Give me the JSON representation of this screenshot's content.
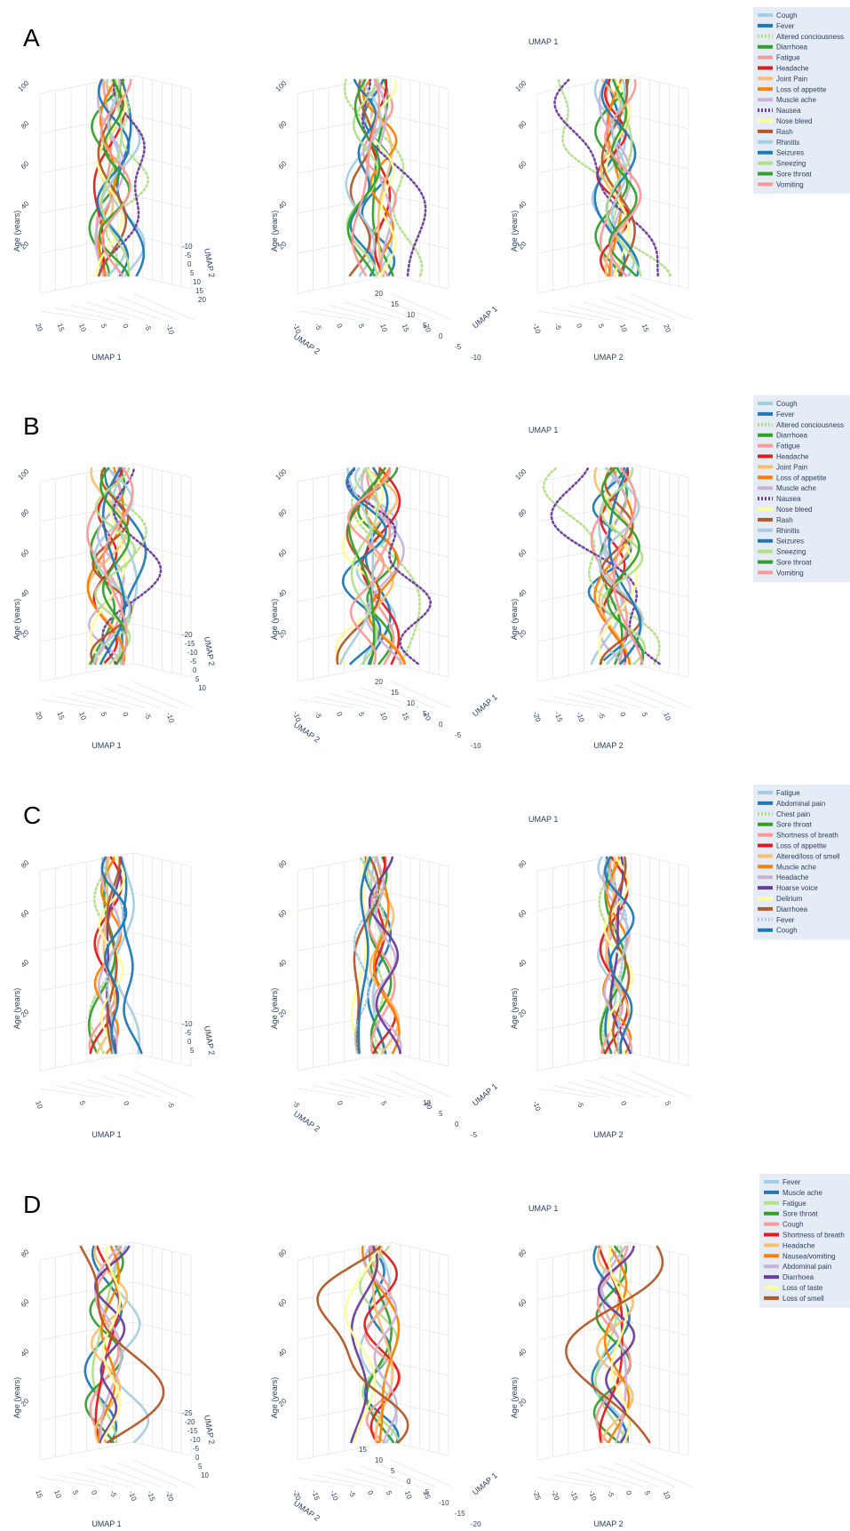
{
  "panels": [
    {
      "letter": "A",
      "legend": [
        "Cough",
        "Fever",
        "Altered conciousness",
        "Diarrhoea",
        "Fatigue",
        "Headache",
        "Joint Pain",
        "Loss of appetite",
        "Muscle ache",
        "Nausea",
        "Nose bleed",
        "Rash",
        "Rhinitis",
        "Seizures",
        "Sneezing",
        "Sore throat",
        "Vomiting"
      ],
      "dotted": [
        "Altered conciousness",
        "Nausea"
      ],
      "age_ticks": [
        "20",
        "40",
        "60",
        "80",
        "100"
      ],
      "views": [
        {
          "umap1_ticks": [
            "20",
            "15",
            "10",
            "5",
            "0",
            "-5",
            "-10"
          ],
          "umap2_ticks": [
            "-10",
            "-5",
            "0",
            "5",
            "10",
            "15",
            "20"
          ]
        },
        {
          "umap2_ticks": [
            "-10",
            "-5",
            "0",
            "5",
            "10",
            "15",
            "20"
          ],
          "umap1_ticks": [
            "-10",
            "-5",
            "0",
            "5",
            "10",
            "15",
            "20"
          ]
        },
        {
          "umap2_ticks": [
            "-10",
            "-5",
            "0",
            "5",
            "10",
            "15",
            "20"
          ]
        }
      ]
    },
    {
      "letter": "B",
      "legend": [
        "Cough",
        "Fever",
        "Altered conciousness",
        "Diarrhoea",
        "Fatigue",
        "Headache",
        "Joint Pain",
        "Loss of appetite",
        "Muscle ache",
        "Nausea",
        "Nose bleed",
        "Rash",
        "Rhinitis",
        "Seizures",
        "Sneezing",
        "Sore throat",
        "Vomiting"
      ],
      "dotted": [
        "Altered conciousness",
        "Nausea"
      ],
      "age_ticks": [
        "20",
        "40",
        "60",
        "80",
        "100"
      ],
      "views": [
        {
          "umap1_ticks": [
            "20",
            "15",
            "10",
            "5",
            "0",
            "-5",
            "-10"
          ],
          "umap2_ticks": [
            "-20",
            "-15",
            "-10",
            "-5",
            "0",
            "5",
            "10"
          ]
        },
        {
          "umap2_ticks": [
            "-20",
            "-15",
            "-10",
            "-5",
            "0",
            "5",
            "10"
          ],
          "umap1_ticks": [
            "-10",
            "-5",
            "0",
            "5",
            "10",
            "15",
            "20"
          ]
        },
        {
          "umap2_ticks": [
            "-20",
            "-15",
            "-10",
            "-5",
            "0",
            "5",
            "10"
          ]
        }
      ]
    },
    {
      "letter": "C",
      "legend": [
        "Fatigue",
        "Abdominal pain",
        "Chest pain",
        "Sore throat",
        "Shortness of breath",
        "Loss of appetite",
        "Altered/loss of smell",
        "Muscle ache",
        "Headache",
        "Hoarse voice",
        "Delirium",
        "Diarrhoea",
        "Fever",
        "Cough"
      ],
      "dotted": [
        "Chest pain",
        "Fever"
      ],
      "age_ticks": [
        "20",
        "40",
        "60",
        "80"
      ],
      "views": [
        {
          "umap1_ticks": [
            "10",
            "5",
            "0",
            "-5"
          ],
          "umap2_ticks": [
            "-10",
            "-5",
            "0",
            "5"
          ]
        },
        {
          "umap2_ticks": [
            "-10",
            "-5",
            "0",
            "5",
            "10"
          ],
          "umap1_ticks": [
            "-5",
            "0",
            "5",
            "10"
          ]
        },
        {
          "umap2_ticks": [
            "-10",
            "-5",
            "0",
            "5"
          ]
        }
      ]
    },
    {
      "letter": "D",
      "legend": [
        "Fever",
        "Muscle ache",
        "Fatigue",
        "Sore throat",
        "Cough",
        "Shortness of breath",
        "Headache",
        "Nausea/vomiting",
        "Abdominal pain",
        "Diarrhoea",
        "Loss of taste",
        "Loss of smell"
      ],
      "dotted": [],
      "age_ticks": [
        "20",
        "40",
        "60",
        "80"
      ],
      "views": [
        {
          "umap1_ticks": [
            "15",
            "10",
            "5",
            "0",
            "-5",
            "-10",
            "-15",
            "-20"
          ],
          "umap2_ticks": [
            "-25",
            "-20",
            "-15",
            "-10",
            "-5",
            "0",
            "5",
            "10"
          ]
        },
        {
          "umap2_ticks": [
            "-25",
            "-20",
            "-15",
            "-10",
            "-5",
            "0",
            "5",
            "10"
          ],
          "umap1_ticks": [
            "-20",
            "-15",
            "-10",
            "-5",
            "0",
            "5",
            "10",
            "15"
          ]
        },
        {
          "umap2_ticks": [
            "-25",
            "-20",
            "-15",
            "-10",
            "-5",
            "0",
            "5",
            "10"
          ]
        }
      ]
    }
  ],
  "axis_titles": {
    "age": "Age (years)",
    "umap1": "UMAP 1",
    "umap2": "UMAP 2"
  },
  "colors": [
    "#a6cee3",
    "#1f78b4",
    "#b2df8a",
    "#33a02c",
    "#fb9a99",
    "#e31a1c",
    "#fdbf6f",
    "#ff7f00",
    "#cab2d6",
    "#6a3d9a",
    "#ffff99",
    "#b15928",
    "#a6cee3",
    "#1f78b4",
    "#b2df8a",
    "#33a02c",
    "#fb9a99"
  ],
  "chart_data": [
    {
      "type": "line",
      "title": "A",
      "x_label": "UMAP 1",
      "y_label": "UMAP 2",
      "z_label": "Age (years)",
      "series_source": "legend",
      "zlim": [
        0,
        100
      ]
    },
    {
      "type": "line",
      "title": "B",
      "x_label": "UMAP 1",
      "y_label": "UMAP 2",
      "z_label": "Age (years)",
      "series_source": "legend",
      "zlim": [
        0,
        100
      ]
    },
    {
      "type": "line",
      "title": "C",
      "x_label": "UMAP 1",
      "y_label": "UMAP 2",
      "z_label": "Age (years)",
      "series_source": "legend",
      "zlim": [
        0,
        90
      ]
    },
    {
      "type": "line",
      "title": "D",
      "x_label": "UMAP 1",
      "y_label": "UMAP 2",
      "z_label": "Age (years)",
      "series_source": "legend",
      "zlim": [
        0,
        90
      ]
    }
  ]
}
